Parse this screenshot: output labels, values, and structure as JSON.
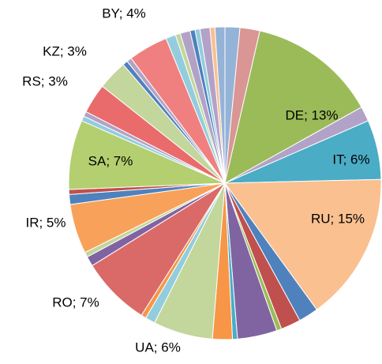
{
  "chart_data": {
    "type": "pie",
    "values": [
      1.5,
      2,
      13,
      1.5,
      6,
      15,
      2,
      2,
      0.5,
      4,
      0.5,
      2,
      6,
      1,
      0.5,
      7,
      1,
      0.5,
      5,
      1,
      0.5,
      7,
      0.5,
      0.5,
      3,
      3,
      0.5,
      0.5,
      4,
      1,
      0.5,
      1,
      0.5,
      0.5,
      1,
      0.5,
      1
    ],
    "value_labels": [
      null,
      null,
      "DE; 13%",
      null,
      "IT; 6%",
      "RU; 15%",
      null,
      null,
      null,
      null,
      null,
      null,
      "UA; 6%",
      null,
      null,
      "RO; 7%",
      null,
      null,
      "IR; 5%",
      null,
      null,
      "SA; 7%",
      null,
      null,
      "RS; 3%",
      "KZ; 3%",
      null,
      null,
      "BY; 4%",
      null,
      null,
      null,
      null,
      null,
      null,
      null,
      null
    ],
    "colors": [
      "#95b3d7",
      "#d99694",
      "#9bbb59",
      "#b3a2c7",
      "#4bacc6",
      "#fac090",
      "#4f81bd",
      "#c0504d",
      "#9bbb59",
      "#8064a2",
      "#4bacc6",
      "#f79646",
      "#c3d69b",
      "#93cddd",
      "#f79646",
      "#da6a68",
      "#8064a2",
      "#c3d69b",
      "#f8a15a",
      "#4f81bd",
      "#c0504d",
      "#b4cf6f",
      "#93cddd",
      "#b3a2c7",
      "#ea6b6b",
      "#c3d69b",
      "#4f81bd",
      "#b3a2c7",
      "#f08080",
      "#93cddd",
      "#c3d69b",
      "#b3a2c7",
      "#4f81bd",
      "#93cddd",
      "#b3a2c7",
      "#fac090",
      "#95b3d7"
    ]
  }
}
